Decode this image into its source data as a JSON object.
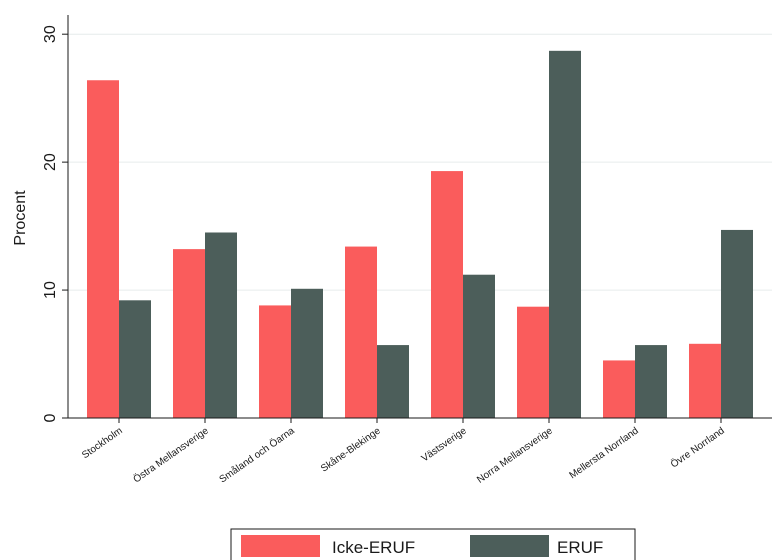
{
  "chart_data": {
    "type": "bar",
    "title": "",
    "xlabel": "",
    "ylabel": "Procent",
    "ylim": [
      0,
      31.5
    ],
    "yticks": [
      0,
      10,
      20,
      30
    ],
    "grid": true,
    "legend_position": "bottom",
    "categories": [
      "Stockholm",
      "Östra Mellansverige",
      "Småland och Öarna",
      "Skåne-Blekinge",
      "Västsverige",
      "Norra Mellansverige",
      "Mellersta Norrland",
      "Övre Norrland"
    ],
    "series": [
      {
        "name": "Icke-ERUF",
        "color": "#fa5c5c",
        "values": [
          26.4,
          13.2,
          8.8,
          13.4,
          19.3,
          8.7,
          4.5,
          5.8
        ]
      },
      {
        "name": "ERUF",
        "color": "#4c5e5a",
        "values": [
          9.2,
          14.5,
          10.1,
          5.7,
          11.2,
          28.7,
          5.7,
          14.7
        ]
      }
    ]
  }
}
